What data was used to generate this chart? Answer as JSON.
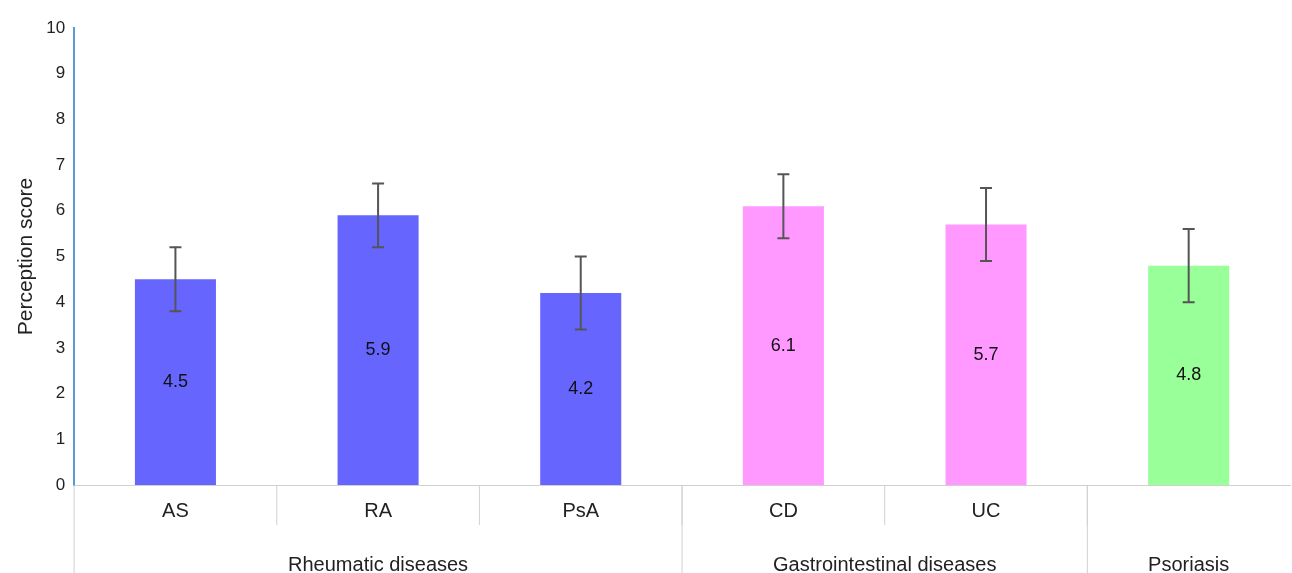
{
  "chart_data": {
    "type": "bar",
    "ylabel": "Perception score",
    "categories": [
      "AS",
      "RA",
      "PsA",
      "CD",
      "UC",
      null
    ],
    "values": [
      4.5,
      5.9,
      4.2,
      6.1,
      5.7,
      4.8
    ],
    "colors": [
      "#6666ff",
      "#6666ff",
      "#6666ff",
      "#ff99ff",
      "#ff99ff",
      "#99ff99"
    ],
    "errors": [
      0.7,
      0.7,
      0.8,
      0.7,
      0.8,
      0.8
    ],
    "ylim": [
      0,
      10
    ],
    "yticks": [
      0,
      1,
      2,
      3,
      4,
      5,
      6,
      7,
      8,
      9,
      10
    ],
    "data_labels": true,
    "grid": false,
    "legend": false,
    "annotations": [
      "Rheumatic diseases",
      "Gastrointestinal diseases",
      "Psoriasis"
    ]
  }
}
